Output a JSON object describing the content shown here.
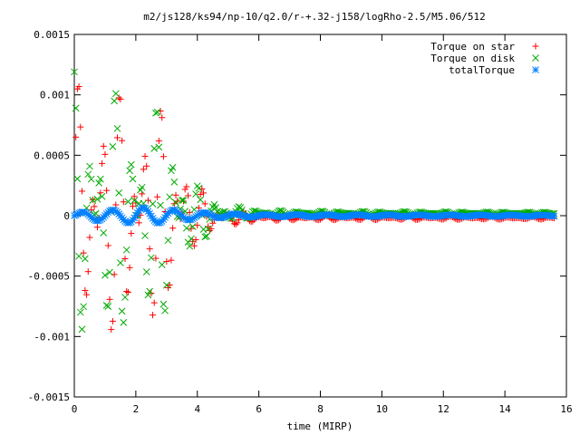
{
  "chart_data": {
    "type": "scatter",
    "title": "m2/js128/ks94/np-10/q2.0/r-+.32-j158/logRho-2.5/M5.06/512",
    "xlabel": "time (MIRP)",
    "ylabel": "",
    "xlim": [
      0,
      16
    ],
    "ylim": [
      -0.0015,
      0.0015
    ],
    "x_ticks": [
      0,
      2,
      4,
      6,
      8,
      10,
      12,
      14,
      16
    ],
    "y_ticks": [
      -0.0015,
      -0.001,
      -0.0005,
      0,
      0.0005,
      0.001,
      0.0015
    ],
    "x_tick_labels": [
      "0",
      "2",
      "4",
      "6",
      "8",
      "10",
      "12",
      "14",
      "16"
    ],
    "y_tick_labels": [
      "-0.0015",
      "-0.001",
      "-0.0005",
      "0",
      "0.0005",
      "0.001",
      "0.0015"
    ],
    "grid": false,
    "legend_position": "top-right",
    "series": [
      {
        "name": "Torque on star",
        "marker": "+",
        "color": "#ff0000",
        "x_start": 0.0,
        "x_end": 15.6,
        "step": 0.05,
        "envelope": [
          [
            0.0,
            0.0012
          ],
          [
            0.5,
            0.00105
          ],
          [
            1.0,
            0.001
          ],
          [
            1.5,
            0.00105
          ],
          [
            2.0,
            0.00095
          ],
          [
            2.5,
            0.0009
          ],
          [
            3.0,
            0.0009
          ],
          [
            3.4,
            0.0008
          ],
          [
            3.8,
            0.0003
          ],
          [
            4.5,
            0.00015
          ],
          [
            5.0,
            7e-05
          ],
          [
            6.0,
            3e-05
          ],
          [
            7.0,
            2e-05
          ],
          [
            15.6,
            1e-05
          ]
        ],
        "late_offset": -2e-05
      },
      {
        "name": "Torque on disk",
        "marker": "x",
        "color": "#00aa00",
        "x_start": 0.0,
        "x_end": 15.6,
        "step": 0.05,
        "envelope": [
          [
            0.0,
            0.0012
          ],
          [
            0.5,
            0.00105
          ],
          [
            1.0,
            0.001
          ],
          [
            1.5,
            0.00105
          ],
          [
            2.0,
            0.00095
          ],
          [
            2.5,
            0.0009
          ],
          [
            3.0,
            0.0009
          ],
          [
            3.4,
            0.0008
          ],
          [
            3.8,
            0.0003
          ],
          [
            4.5,
            0.00015
          ],
          [
            5.0,
            7e-05
          ],
          [
            6.0,
            3e-05
          ],
          [
            7.0,
            2e-05
          ],
          [
            15.6,
            1e-05
          ]
        ],
        "late_offset": 2e-05
      },
      {
        "name": "totalTorque",
        "marker": "*",
        "color": "#0080ff",
        "x_start": 0.0,
        "x_end": 15.6,
        "step": 0.05,
        "envelope": [
          [
            0.0,
            2e-05
          ],
          [
            0.5,
            4e-05
          ],
          [
            1.5,
            5e-05
          ],
          [
            2.0,
            7e-05
          ],
          [
            2.8,
            6e-05
          ],
          [
            3.5,
            4e-05
          ],
          [
            4.5,
            2e-05
          ],
          [
            6.0,
            1e-05
          ],
          [
            15.6,
            5e-06
          ]
        ],
        "late_offset": 0.0
      }
    ]
  }
}
